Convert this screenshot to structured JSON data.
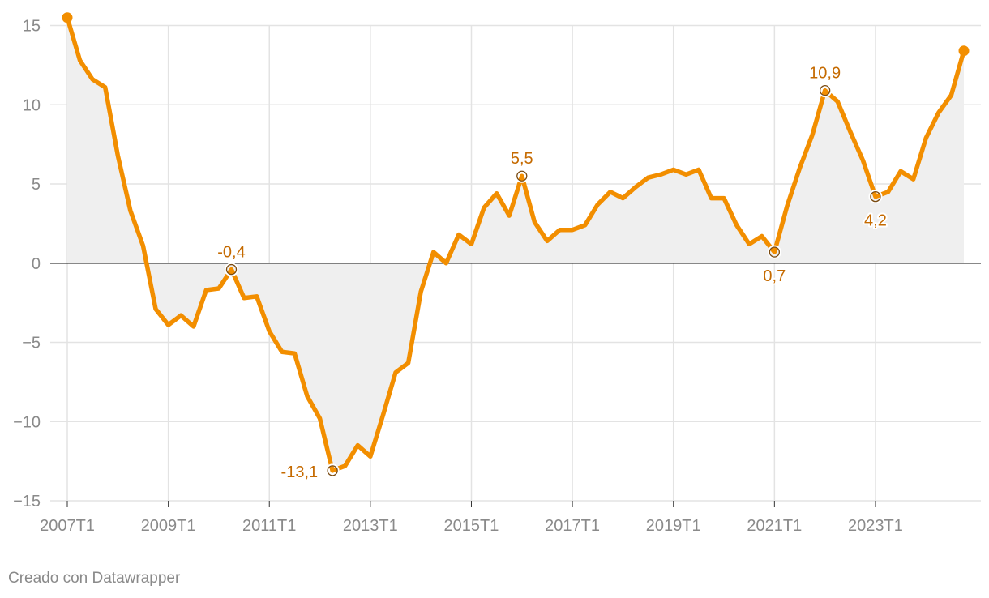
{
  "chart_data": {
    "type": "area",
    "title": "",
    "xlabel": "",
    "ylabel": "",
    "ylim": [
      -15,
      15
    ],
    "y_ticks": [
      15,
      10,
      5,
      0,
      -5,
      -10,
      -15
    ],
    "y_tick_labels": [
      "15",
      "10",
      "5",
      "0",
      "−5",
      "−10",
      "−15"
    ],
    "x_tick_labels": [
      "2007T1",
      "2009T1",
      "2011T1",
      "2013T1",
      "2015T1",
      "2017T1",
      "2019T1",
      "2021T1",
      "2023T1"
    ],
    "grid": true,
    "line_color": "#f28e00",
    "fill_color": "#efefef",
    "annotation_color": "#c56a00",
    "series": [
      {
        "x": [
          "2007T1",
          "2007T2",
          "2007T3",
          "2007T4",
          "2008T1",
          "2008T2",
          "2008T3",
          "2008T4",
          "2009T1",
          "2009T2",
          "2009T3",
          "2009T4",
          "2010T1",
          "2010T2",
          "2010T3",
          "2010T4",
          "2011T1",
          "2011T2",
          "2011T3",
          "2011T4",
          "2012T1",
          "2012T2",
          "2012T3",
          "2012T4",
          "2013T1",
          "2013T2",
          "2013T3",
          "2013T4",
          "2014T1",
          "2014T2",
          "2014T3",
          "2014T4",
          "2015T1",
          "2015T2",
          "2015T3",
          "2015T4",
          "2016T1",
          "2016T2",
          "2016T3",
          "2016T4",
          "2017T1",
          "2017T2",
          "2017T3",
          "2017T4",
          "2018T1",
          "2018T2",
          "2018T3",
          "2018T4",
          "2019T1",
          "2019T2",
          "2019T3",
          "2019T4",
          "2020T1",
          "2020T2",
          "2020T3",
          "2020T4",
          "2021T1",
          "2021T2",
          "2021T3",
          "2021T4",
          "2022T1",
          "2022T2",
          "2022T3",
          "2022T4",
          "2023T1",
          "2023T2",
          "2023T3",
          "2023T4",
          "2024T1",
          "2024T2",
          "2024T3",
          "2024T4"
        ],
        "values": [
          15.5,
          12.8,
          11.6,
          11.1,
          6.8,
          3.3,
          1.1,
          -2.9,
          -3.9,
          -3.3,
          -4.0,
          -1.7,
          -1.6,
          -0.4,
          -2.2,
          -2.1,
          -4.3,
          -5.6,
          -5.7,
          -8.4,
          -9.8,
          -13.1,
          -12.8,
          -11.5,
          -12.2,
          -9.6,
          -6.9,
          -6.3,
          -1.8,
          0.7,
          0.0,
          1.8,
          1.2,
          3.5,
          4.4,
          3.0,
          5.5,
          2.6,
          1.4,
          2.1,
          2.1,
          2.4,
          3.7,
          4.5,
          4.1,
          4.8,
          5.4,
          5.6,
          5.9,
          5.6,
          5.9,
          4.1,
          4.1,
          2.4,
          1.2,
          1.7,
          0.7,
          3.6,
          6.0,
          8.1,
          10.9,
          10.2,
          8.3,
          6.5,
          4.2,
          4.5,
          5.8,
          5.3,
          7.9,
          9.5,
          10.6,
          13.4
        ]
      }
    ],
    "annotations": [
      {
        "index": 13,
        "label": "-0,4",
        "pos": "above"
      },
      {
        "index": 21,
        "label": "-13,1",
        "pos": "left"
      },
      {
        "index": 36,
        "label": "5,5",
        "pos": "above"
      },
      {
        "index": 56,
        "label": "0,7",
        "pos": "below"
      },
      {
        "index": 60,
        "label": "10,9",
        "pos": "above"
      },
      {
        "index": 64,
        "label": "4,2",
        "pos": "below"
      }
    ]
  },
  "footer": {
    "credit": "Creado con Datawrapper"
  }
}
